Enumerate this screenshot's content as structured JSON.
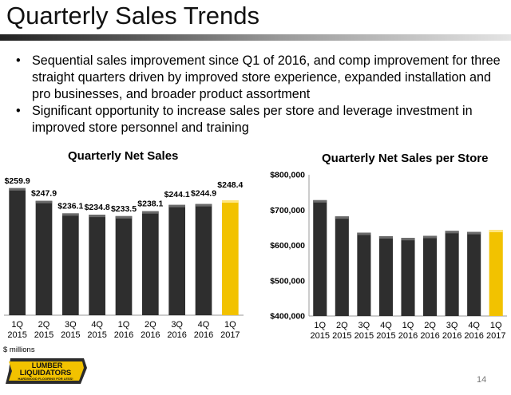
{
  "slide": {
    "title": "Quarterly Sales Trends",
    "bullets": [
      "Sequential sales improvement since Q1 of 2016, and comp improvement for three straight quarters driven by improved store experience, expanded installation and pro businesses, and broader product assortment",
      "Significant opportunity to increase sales per store and leverage investment in improved store personnel and training"
    ],
    "bullet_symbol": "•",
    "units_note": "$ millions",
    "page_number": "14",
    "logo": {
      "line1": "LUMBER",
      "line2": "LIQUIDATORS",
      "tagline": "HARDWOOD FLOORING FOR LESS!"
    }
  },
  "chart_data": [
    {
      "type": "bar",
      "title": "Quarterly Net Sales",
      "categories": [
        [
          "1Q",
          "2015"
        ],
        [
          "2Q",
          "2015"
        ],
        [
          "3Q",
          "2015"
        ],
        [
          "4Q",
          "2015"
        ],
        [
          "1Q",
          "2016"
        ],
        [
          "2Q",
          "2016"
        ],
        [
          "3Q",
          "2016"
        ],
        [
          "4Q",
          "2016"
        ],
        [
          "1Q",
          "2017"
        ]
      ],
      "values": [
        259.9,
        247.9,
        236.1,
        234.8,
        233.5,
        238.1,
        244.1,
        244.9,
        248.4
      ],
      "data_labels": [
        "$259.9",
        "$247.9",
        "$236.1",
        "$234.8",
        "$233.5",
        "$238.1",
        "$244.1",
        "$244.9",
        "$248.4"
      ],
      "ylim": [
        140,
        262
      ],
      "y_axis_shown": false,
      "colors": {
        "bar": "#2e2e2e",
        "highlight": "#f2c200"
      },
      "highlight_index": 8
    },
    {
      "type": "bar",
      "title": "Quarterly Net Sales per Store",
      "categories": [
        [
          "1Q",
          "2015"
        ],
        [
          "2Q",
          "2015"
        ],
        [
          "3Q",
          "2015"
        ],
        [
          "4Q",
          "2015"
        ],
        [
          "1Q",
          "2016"
        ],
        [
          "2Q",
          "2016"
        ],
        [
          "3Q",
          "2016"
        ],
        [
          "4Q",
          "2016"
        ],
        [
          "1Q",
          "2017"
        ]
      ],
      "values": [
        728000,
        682000,
        636000,
        626000,
        621000,
        627000,
        641000,
        638000,
        644000
      ],
      "ylim": [
        400000,
        800000
      ],
      "yticks": [
        400000,
        500000,
        600000,
        700000,
        800000
      ],
      "ytick_labels": [
        "$400,000",
        "$500,000",
        "$600,000",
        "$700,000",
        "$800,000"
      ],
      "colors": {
        "bar": "#2e2e2e",
        "highlight": "#f2c200"
      },
      "highlight_index": 8
    }
  ]
}
